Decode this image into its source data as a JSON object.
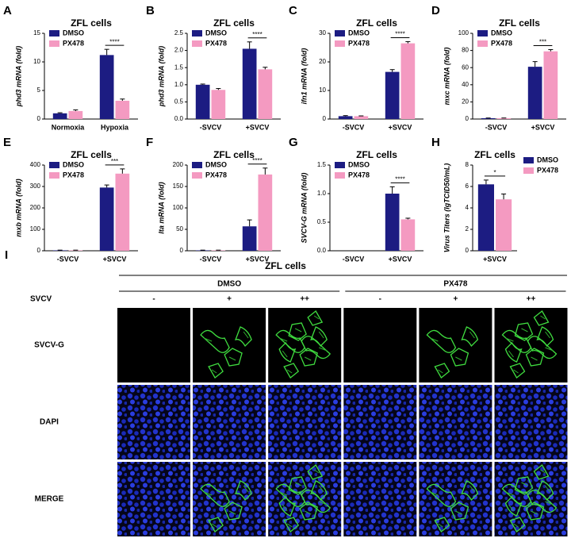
{
  "chart_data": [
    {
      "type": "bar",
      "panel": "A",
      "title": "ZFL cells",
      "ylabel": "phd3 mRNA (fold)",
      "categories": [
        "Normoxia",
        "Hypoxia"
      ],
      "series": [
        {
          "name": "DMSO",
          "color": "#1c1c82",
          "values": [
            1,
            11.2
          ],
          "errors": [
            0.1,
            1.0
          ]
        },
        {
          "name": "PX478",
          "color": "#f49ac1",
          "values": [
            1.4,
            3.2
          ],
          "errors": [
            0.2,
            0.3
          ]
        }
      ],
      "ylim": [
        0,
        15
      ],
      "yticks": [
        0,
        5,
        10,
        15
      ],
      "significance": [
        null,
        "****"
      ],
      "legend": "upper left"
    },
    {
      "type": "bar",
      "panel": "B",
      "title": "ZFL cells",
      "ylabel": "phd3 mRNA (fold)",
      "categories": [
        "-SVCV",
        "+SVCV"
      ],
      "series": [
        {
          "name": "DMSO",
          "color": "#1c1c82",
          "values": [
            1.0,
            2.05
          ],
          "errors": [
            0.02,
            0.2
          ]
        },
        {
          "name": "PX478",
          "color": "#f49ac1",
          "values": [
            0.85,
            1.45
          ],
          "errors": [
            0.04,
            0.06
          ]
        }
      ],
      "ylim": [
        0,
        2.5
      ],
      "yticks": [
        {
          "value": 0,
          "label": "0.0"
        },
        0.5,
        {
          "value": 1,
          "label": "1.0"
        },
        1.5,
        {
          "value": 2,
          "label": "2.0"
        },
        2.5
      ],
      "significance": [
        null,
        "****"
      ],
      "legend": "upper left"
    },
    {
      "type": "bar",
      "panel": "C",
      "title": "ZFL cells",
      "ylabel": "ifn1 mRNA (fold)",
      "categories": [
        "-SVCV",
        "+SVCV"
      ],
      "series": [
        {
          "name": "DMSO",
          "color": "#1c1c82",
          "values": [
            1,
            16.5
          ],
          "errors": [
            0.2,
            0.8
          ]
        },
        {
          "name": "PX478",
          "color": "#f49ac1",
          "values": [
            1,
            26.5
          ],
          "errors": [
            0.1,
            0.6
          ]
        }
      ],
      "ylim": [
        0,
        30
      ],
      "yticks": [
        0,
        10,
        20,
        30
      ],
      "significance": [
        null,
        "****"
      ],
      "legend": "upper left"
    },
    {
      "type": "bar",
      "panel": "D",
      "title": "ZFL cells",
      "ylabel": "mxc mRNA (fold)",
      "categories": [
        "-SVCV",
        "+SVCV"
      ],
      "series": [
        {
          "name": "DMSO",
          "color": "#1c1c82",
          "values": [
            1,
            61
          ],
          "errors": [
            0.2,
            6
          ]
        },
        {
          "name": "PX478",
          "color": "#f49ac1",
          "values": [
            1,
            79
          ],
          "errors": [
            0.2,
            2
          ]
        }
      ],
      "ylim": [
        0,
        100
      ],
      "yticks": [
        0,
        20,
        40,
        60,
        80,
        100
      ],
      "significance": [
        null,
        "***"
      ],
      "legend": "upper left"
    },
    {
      "type": "bar",
      "panel": "E",
      "title": "ZFL cells",
      "ylabel": "mxb mRNA (fold)",
      "categories": [
        "-SVCV",
        "+SVCV"
      ],
      "series": [
        {
          "name": "DMSO",
          "color": "#1c1c82",
          "values": [
            2,
            295
          ],
          "errors": [
            1,
            12
          ]
        },
        {
          "name": "PX478",
          "color": "#f49ac1",
          "values": [
            2,
            360
          ],
          "errors": [
            1,
            22
          ]
        }
      ],
      "ylim": [
        0,
        400
      ],
      "yticks": [
        0,
        100,
        200,
        300,
        400
      ],
      "significance": [
        null,
        "***"
      ],
      "legend": "upper left"
    },
    {
      "type": "bar",
      "panel": "F",
      "title": "ZFL cells",
      "ylabel": "lta mRNA (fold)",
      "categories": [
        "-SVCV",
        "+SVCV"
      ],
      "series": [
        {
          "name": "DMSO",
          "color": "#1c1c82",
          "values": [
            1,
            57
          ],
          "errors": [
            0.5,
            15
          ]
        },
        {
          "name": "PX478",
          "color": "#f49ac1",
          "values": [
            1,
            178
          ],
          "errors": [
            0.5,
            15
          ]
        }
      ],
      "ylim": [
        0,
        200
      ],
      "yticks": [
        0,
        50,
        100,
        150,
        200
      ],
      "significance": [
        null,
        "****"
      ],
      "legend": "upper left"
    },
    {
      "type": "bar",
      "panel": "G",
      "title": "ZFL cells",
      "ylabel": "SVCV-G mRNA (fold)",
      "categories": [
        "-SVCV",
        "+SVCV"
      ],
      "series": [
        {
          "name": "DMSO",
          "color": "#1c1c82",
          "values": [
            0,
            1.0
          ],
          "errors": [
            0,
            0.12
          ]
        },
        {
          "name": "PX478",
          "color": "#f49ac1",
          "values": [
            0,
            0.55
          ],
          "errors": [
            0,
            0.02
          ]
        }
      ],
      "ylim": [
        0,
        1.5
      ],
      "yticks": [
        {
          "value": 0,
          "label": "0.0"
        },
        0.5,
        {
          "value": 1,
          "label": "1.0"
        },
        1.5
      ],
      "significance": [
        null,
        "****"
      ],
      "legend": "upper left"
    },
    {
      "type": "bar",
      "panel": "H",
      "title": "ZFL cells",
      "ylabel": "Virus Titers (lgTCID50/mL)",
      "categories": [
        "+SVCV"
      ],
      "series": [
        {
          "name": "DMSO",
          "color": "#1c1c82",
          "values": [
            6.2
          ],
          "errors": [
            0.4
          ]
        },
        {
          "name": "PX478",
          "color": "#f49ac1",
          "values": [
            4.8
          ],
          "errors": [
            0.5
          ]
        }
      ],
      "ylim": [
        0,
        8
      ],
      "yticks": [
        0,
        2,
        4,
        6,
        8
      ],
      "significance": [
        "*"
      ],
      "legend": "right"
    }
  ],
  "panel_i": {
    "label": "I",
    "title": "ZFL cells",
    "groups": [
      "DMSO",
      "PX478"
    ],
    "condition": "SVCV",
    "levels": [
      "-",
      "+",
      "++",
      "-",
      "+",
      "++"
    ],
    "rows": [
      "SVCV-G",
      "DAPI",
      "MERGE"
    ]
  }
}
